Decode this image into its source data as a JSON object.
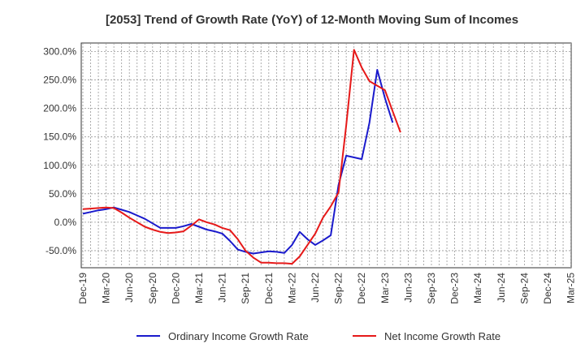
{
  "chart_data": {
    "type": "line",
    "title": "[2053]  Trend of Growth Rate (YoY) of 12-Month Moving Sum of Incomes",
    "xlabel": "",
    "ylabel": "",
    "ylim": [
      -80,
      315
    ],
    "y_ticks": [
      300,
      250,
      200,
      150,
      100,
      50,
      0,
      -50
    ],
    "y_tick_labels": [
      "300.0%",
      "250.0%",
      "200.0%",
      "150.0%",
      "100.0%",
      "50.0%",
      "0.0%",
      "-50.0%"
    ],
    "x_tick_labels": [
      "Dec-19",
      "Mar-20",
      "Jun-20",
      "Sep-20",
      "Dec-20",
      "Mar-21",
      "Jun-21",
      "Sep-21",
      "Dec-21",
      "Mar-22",
      "Jun-22",
      "Sep-22",
      "Dec-22",
      "Mar-23",
      "Jun-23",
      "Sep-23",
      "Dec-23",
      "Mar-24",
      "Jun-24",
      "Sep-24",
      "Dec-24",
      "Mar-25"
    ],
    "grid": true,
    "legend_position": "bottom",
    "series": [
      {
        "name": "Ordinary Income Growth Rate",
        "color": "#1a1acc",
        "values": [
          15,
          18,
          21,
          23,
          26,
          22,
          18,
          12,
          6,
          -2,
          -10,
          -10,
          -10,
          -7,
          -3,
          -8,
          -13,
          -16,
          -20,
          -33,
          -48,
          -52,
          -55,
          -53,
          -51,
          -52,
          -54,
          -40,
          -17,
          -30,
          -40,
          -32,
          -23,
          65,
          117,
          114,
          111,
          175,
          268,
          218,
          175
        ]
      },
      {
        "name": "Net Income Growth Rate",
        "color": "#e61919",
        "values": [
          23,
          24,
          25,
          26,
          25,
          17,
          8,
          0,
          -8,
          -13,
          -17,
          -19,
          -18,
          -16,
          -6,
          5,
          0,
          -4,
          -10,
          -14,
          -30,
          -50,
          -62,
          -71,
          -71,
          -72,
          -72,
          -73,
          -60,
          -40,
          -20,
          8,
          28,
          52,
          170,
          303,
          272,
          248,
          240,
          232,
          195,
          158
        ]
      }
    ]
  }
}
